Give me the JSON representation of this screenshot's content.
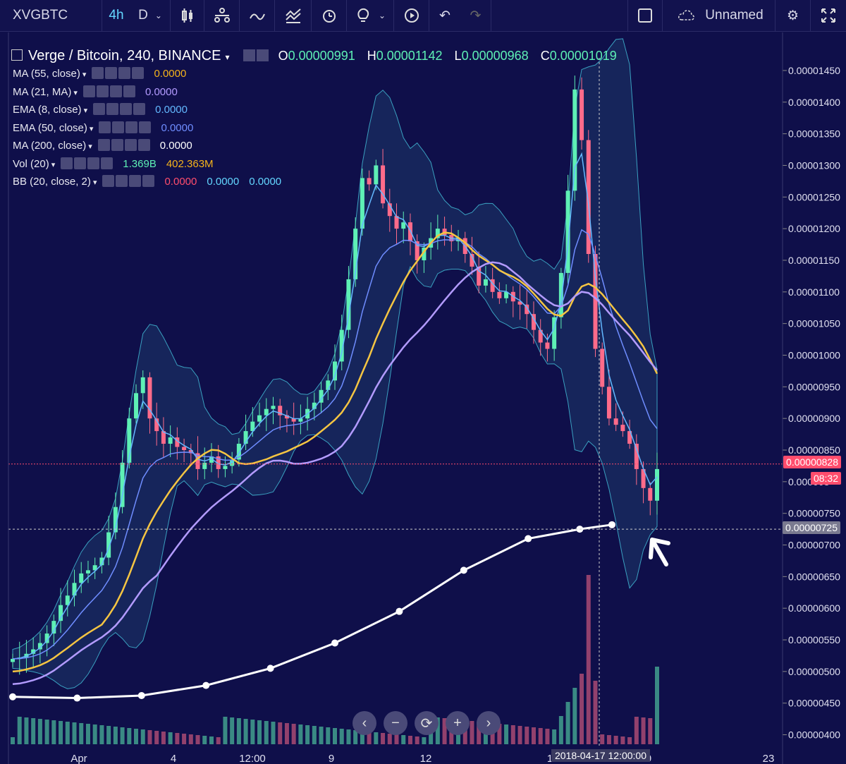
{
  "toolbar": {
    "symbol": "XVGBTC",
    "interval": "4h",
    "interval2": "D",
    "layout_name": "Unnamed"
  },
  "header": {
    "title": "Verge / Bitcoin, 240, BINANCE",
    "o_label": "O",
    "o": "0.00000991",
    "h_label": "H",
    "h": "0.00001142",
    "l_label": "L",
    "l": "0.00000968",
    "c_label": "C",
    "c": "0.00001019"
  },
  "indicators": [
    {
      "name": "MA (55, close)",
      "values": [
        "0.0000"
      ],
      "colors": [
        "#f5b31b"
      ]
    },
    {
      "name": "MA (21, MA)",
      "values": [
        "0.0000"
      ],
      "colors": [
        "#b39bff"
      ]
    },
    {
      "name": "EMA (8, close)",
      "values": [
        "0.0000"
      ],
      "colors": [
        "#63b8ff"
      ]
    },
    {
      "name": "EMA (50, close)",
      "values": [
        "0.0000"
      ],
      "colors": [
        "#6f8dff"
      ]
    },
    {
      "name": "MA (200, close)",
      "values": [
        "0.0000"
      ],
      "colors": [
        "#ffffff"
      ]
    },
    {
      "name": "Vol (20)",
      "values": [
        "1.369B",
        "402.363M"
      ],
      "colors": [
        "#5ef0b5",
        "#f5b31b"
      ]
    },
    {
      "name": "BB (20, close, 2)",
      "values": [
        "0.0000",
        "0.0000",
        "0.0000"
      ],
      "colors": [
        "#ff4d6d",
        "#63d6ff",
        "#63d6ff"
      ]
    }
  ],
  "price_tag": {
    "value": "0.00000828",
    "countdown": "08:32"
  },
  "crosshair_tag": "0.00000725",
  "date_tag": "2018-04-17 12:00:00",
  "colors": {
    "bg": "#0f0f4a",
    "up": "#5ef0b5",
    "down": "#ff6b8a",
    "ma55": "#f5c542",
    "ma21": "#b39bff",
    "ema8": "#63b8ff",
    "ema50": "#6f8dff",
    "ma200": "#ffffff",
    "bb": "#2a6a8a"
  },
  "chart_data": {
    "type": "candlestick",
    "y_tick_labels": [
      "0.00001450",
      "0.00001400",
      "0.00001350",
      "0.00001300",
      "0.00001250",
      "0.00001200",
      "0.00001150",
      "0.00001100",
      "0.00001050",
      "0.00001000",
      "0.00000950",
      "0.00000900",
      "0.00000850",
      "0.000008",
      "0.00000750",
      "0.00000700",
      "0.00000650",
      "0.00000600",
      "0.00000550",
      "0.00000500",
      "0.00000450",
      "0.00000400"
    ],
    "y_ticks": [
      1450,
      1400,
      1350,
      1300,
      1250,
      1200,
      1150,
      1100,
      1050,
      1000,
      950,
      900,
      850,
      800,
      750,
      700,
      650,
      600,
      550,
      500,
      450,
      400
    ],
    "ylim": [
      385,
      1470
    ],
    "x_tick_labels": [
      "Apr",
      "4",
      "12:00",
      "9",
      "12",
      "1",
      "9",
      "23"
    ],
    "close_path": [
      520,
      522,
      528,
      535,
      545,
      560,
      580,
      605,
      620,
      640,
      655,
      660,
      668,
      680,
      720,
      760,
      830,
      900,
      940,
      965,
      900,
      880,
      860,
      870,
      855,
      850,
      845,
      820,
      830,
      840,
      820,
      825,
      835,
      860,
      880,
      895,
      905,
      915,
      920,
      905,
      900,
      895,
      900,
      915,
      925,
      945,
      960,
      990,
      1040,
      1120,
      1200,
      1280,
      1270,
      1300,
      1240,
      1220,
      1200,
      1210,
      1180,
      1150,
      1170,
      1185,
      1200,
      1190,
      1180,
      1185,
      1160,
      1140,
      1110,
      1120,
      1100,
      1090,
      1100,
      1085,
      1080,
      1065,
      1040,
      1020,
      1010,
      1060,
      1130,
      1260,
      1420,
      1340,
      1160,
      1010,
      950,
      900,
      890,
      880,
      860,
      820,
      790,
      770,
      820
    ],
    "ma200_points": [
      [
        0,
        460
      ],
      [
        0.1,
        458
      ],
      [
        0.2,
        462
      ],
      [
        0.3,
        478
      ],
      [
        0.4,
        505
      ],
      [
        0.5,
        545
      ],
      [
        0.6,
        595
      ],
      [
        0.7,
        660
      ],
      [
        0.8,
        710
      ],
      [
        0.88,
        725
      ],
      [
        0.93,
        732
      ]
    ],
    "volume_note": "volume histogram at bottom, latest spike near 2018-04-17"
  },
  "nav": {
    "left": "‹",
    "minus": "−",
    "reset": "⟳",
    "plus": "+",
    "right": "›"
  }
}
